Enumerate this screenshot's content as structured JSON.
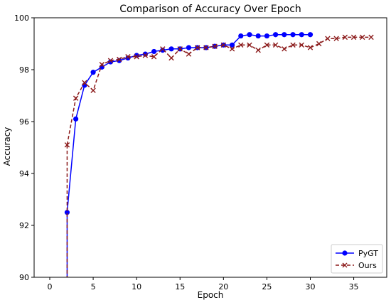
{
  "chart_data": {
    "type": "line",
    "title": "Comparison of Accuracy Over Epoch",
    "xlabel": "Epoch",
    "ylabel": "Accuracy",
    "xlim": [
      -1.8,
      38.8
    ],
    "ylim": [
      90,
      100
    ],
    "xticks": [
      0,
      5,
      10,
      15,
      20,
      25,
      30,
      35
    ],
    "yticks": [
      90,
      92,
      94,
      96,
      98,
      100
    ],
    "grid": false,
    "legend_position": "lower-right",
    "series": [
      {
        "name": "PyGT",
        "color": "#0000ff",
        "style": "solid",
        "marker": "circle",
        "x": [
          2,
          3,
          4,
          5,
          6,
          7,
          8,
          9,
          10,
          11,
          12,
          13,
          14,
          15,
          16,
          17,
          18,
          19,
          20,
          21,
          22,
          23,
          24,
          25,
          26,
          27,
          28,
          29,
          30
        ],
        "y": [
          92.5,
          96.1,
          97.4,
          97.9,
          98.1,
          98.3,
          98.35,
          98.45,
          98.55,
          98.6,
          98.7,
          98.75,
          98.8,
          98.8,
          98.85,
          98.85,
          98.85,
          98.9,
          98.95,
          98.95,
          99.3,
          99.35,
          99.3,
          99.3,
          99.35,
          99.35,
          99.35,
          99.35,
          99.35
        ]
      },
      {
        "name": "Ours",
        "color": "#8b1a1a",
        "style": "dashed",
        "marker": "x",
        "x": [
          2,
          3,
          4,
          5,
          6,
          7,
          8,
          9,
          10,
          11,
          12,
          13,
          14,
          15,
          16,
          17,
          18,
          19,
          20,
          21,
          22,
          23,
          24,
          25,
          26,
          27,
          28,
          29,
          30,
          31,
          32,
          33,
          34,
          35,
          36,
          37
        ],
        "y": [
          95.1,
          96.9,
          97.5,
          97.2,
          98.2,
          98.35,
          98.4,
          98.5,
          98.5,
          98.55,
          98.5,
          98.8,
          98.45,
          98.8,
          98.6,
          98.85,
          98.85,
          98.9,
          98.95,
          98.8,
          98.95,
          98.95,
          98.75,
          98.95,
          98.95,
          98.8,
          98.95,
          98.95,
          98.85,
          99.0,
          99.2,
          99.2,
          99.25,
          99.25,
          99.25,
          99.25
        ]
      }
    ]
  }
}
